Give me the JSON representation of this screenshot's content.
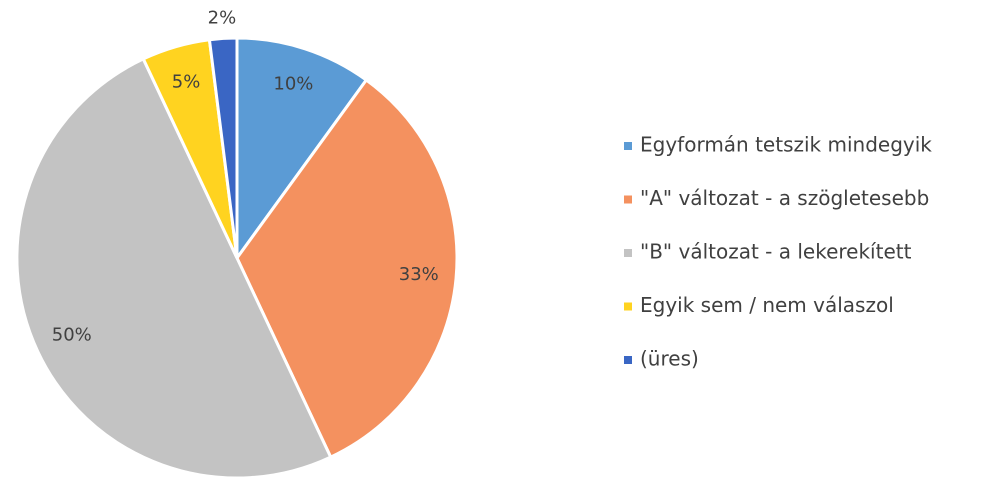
{
  "chart_data": {
    "type": "pie",
    "categories": [
      "Egyformán tetszik mindegyik",
      "\"A\" változat - a szögletesebb",
      "\"B\" változat - a lekerekített",
      "Egyik sem / nem válaszol",
      "(üres)"
    ],
    "values": [
      10,
      33,
      50,
      5,
      2
    ],
    "value_labels": [
      "10%",
      "33%",
      "50%",
      "5%",
      "2%"
    ],
    "colors": [
      "#5b9bd5",
      "#f4915f",
      "#c3c3c3",
      "#ffd320",
      "#3a66c4"
    ],
    "legend": "right"
  }
}
